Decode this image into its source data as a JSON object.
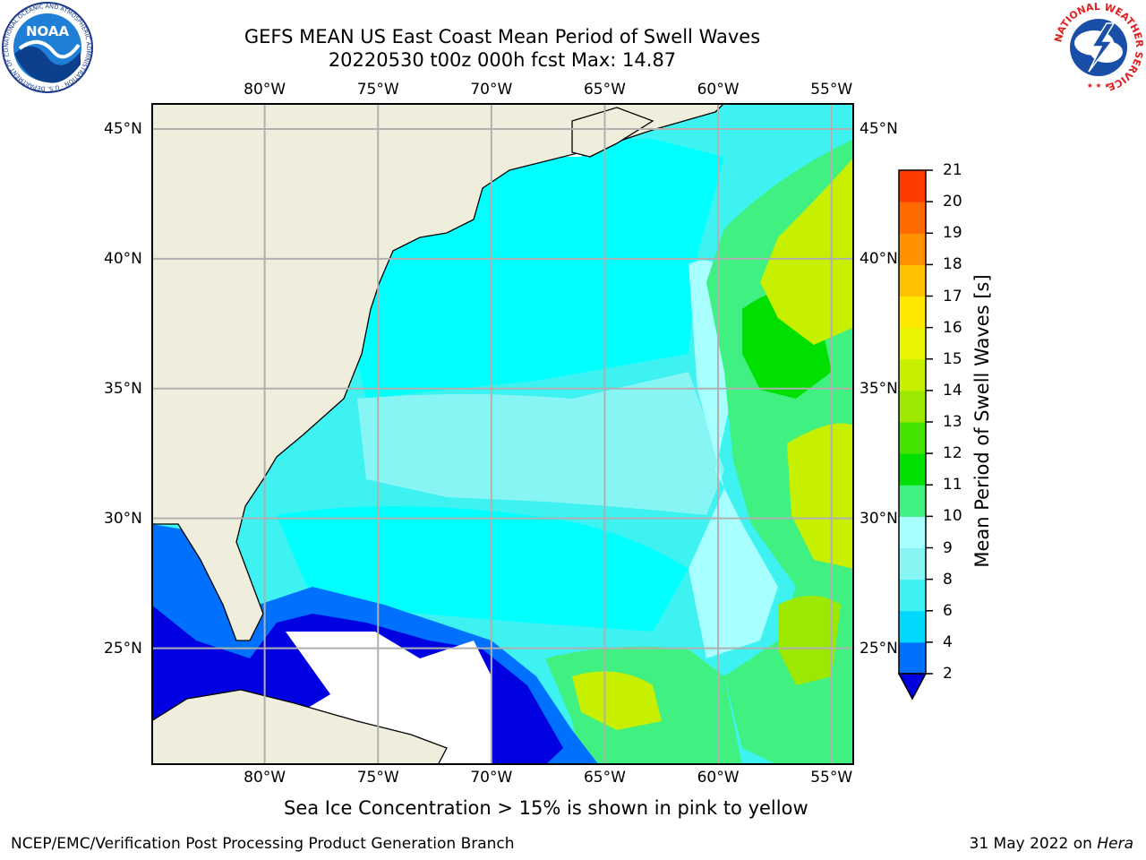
{
  "title": {
    "line1": "GEFS MEAN US East Coast Mean Period of Swell Waves",
    "line2": "20220530 t00z 000h fcst   Max: 14.87"
  },
  "map": {
    "longitude_labels": [
      "80°W",
      "75°W",
      "70°W",
      "65°W",
      "60°W",
      "55°W"
    ],
    "latitude_labels": [
      "45°N",
      "40°N",
      "35°N",
      "30°N",
      "25°N"
    ],
    "lon_range": [
      -85,
      -54
    ],
    "lat_range": [
      20.5,
      46
    ],
    "colors": {
      "land": "#efeedd",
      "ocean_low": "#00ffff",
      "gridline": "#b0b0b0",
      "coast": "#000000"
    }
  },
  "colorbar": {
    "label": "Mean Period of Swell Waves [s]",
    "ticks": [
      "2",
      "4",
      "6",
      "8",
      "9",
      "10",
      "11",
      "12",
      "13",
      "14",
      "15",
      "16",
      "17",
      "18",
      "19",
      "20",
      "21"
    ],
    "colors": [
      "#0070ff",
      "#00d8ff",
      "#3ef2f2",
      "#88f5f5",
      "#a7ffff",
      "#40f080",
      "#00e000",
      "#44e400",
      "#9de800",
      "#c6f000",
      "#e8f400",
      "#ffe800",
      "#ffc000",
      "#ff9000",
      "#ff6a00",
      "#ff3c00",
      "#ff0000"
    ],
    "extend_color": "#0000e0"
  },
  "footer": {
    "sea_ice_note": "Sea Ice Concentration > 15% is shown in pink to yellow",
    "credit": "NCEP/EMC/Verification Post Processing Product Generation Branch",
    "date": "31 May 2022 on",
    "machine": "Hera"
  },
  "logos": {
    "noaa_text": "NOAA",
    "noaa_ring_text": "NATIONAL OCEANIC AND ATMOSPHERIC ADMINISTRATION · U.S. DEPARTMENT OF COMMERCE",
    "nws_ring_text": "NATIONAL WEATHER SERVICE"
  }
}
